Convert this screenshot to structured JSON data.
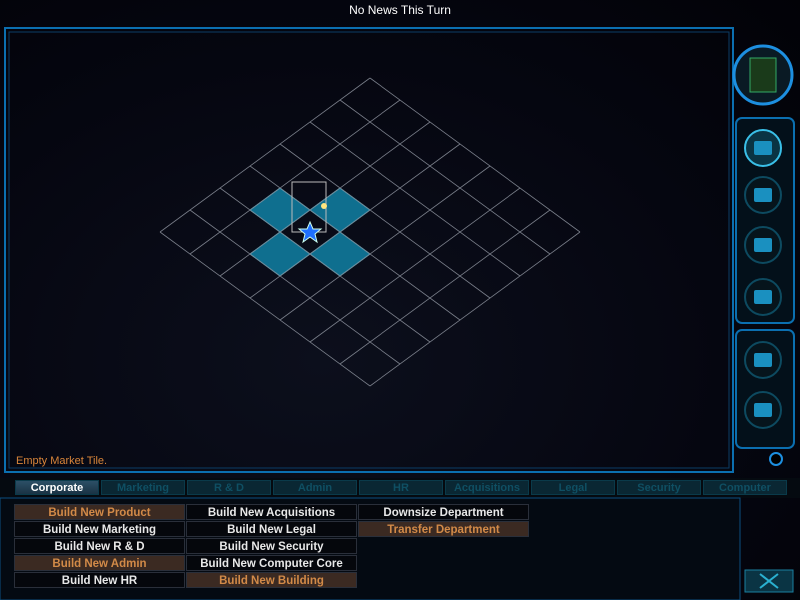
{
  "header": {
    "news": "No News This Turn"
  },
  "status": "Empty Market Tile.",
  "tabs": {
    "active": 0,
    "items": [
      "Corporate",
      "Marketing",
      "R & D",
      "Admin",
      "HR",
      "Acquisitions",
      "Legal",
      "Security",
      "Computer"
    ]
  },
  "actions": {
    "columns": [
      [
        {
          "label": "Build New Product",
          "enabled": false
        },
        {
          "label": "Build New Marketing",
          "enabled": true
        },
        {
          "label": "Build New R & D",
          "enabled": true
        },
        {
          "label": "Build New Admin",
          "enabled": false
        },
        {
          "label": "Build New HR",
          "enabled": true
        }
      ],
      [
        {
          "label": "Build New Acquisitions",
          "enabled": true
        },
        {
          "label": "Build New Legal",
          "enabled": true
        },
        {
          "label": "Build New Security",
          "enabled": true
        },
        {
          "label": "Build New Computer Core",
          "enabled": true
        },
        {
          "label": "Build New Building",
          "enabled": false
        }
      ],
      [
        {
          "label": "Downsize Department",
          "enabled": true
        },
        {
          "label": "Transfer Department",
          "enabled": false
        }
      ]
    ]
  }
}
